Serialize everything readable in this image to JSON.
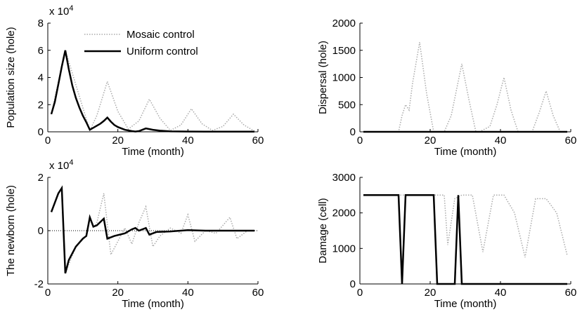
{
  "chart_data": [
    {
      "type": "line",
      "xlabel": "Time (month)",
      "ylabel": "Population size (hole)",
      "y_offset_label": "x 10",
      "y_offset_power": "4",
      "xlim": [
        0,
        60
      ],
      "xticks": [
        0,
        20,
        40,
        60
      ],
      "ylim": [
        0,
        8
      ],
      "yticks": [
        0,
        2,
        4,
        6,
        8
      ],
      "legend": "upper left",
      "series": [
        {
          "name": "Mosaic control",
          "color": "#aaaaaa",
          "style": "dotted",
          "x": [
            1,
            5,
            12,
            14,
            17,
            20,
            23,
            26,
            29,
            32,
            35,
            38,
            41,
            44,
            47,
            50,
            53,
            56,
            59
          ],
          "values": [
            1.3,
            6.0,
            0.1,
            1.2,
            3.7,
            1.5,
            0.2,
            0.8,
            2.4,
            1.0,
            0.1,
            0.5,
            1.7,
            0.6,
            0.1,
            0.4,
            1.3,
            0.5,
            0.05
          ]
        },
        {
          "name": "Uniform control",
          "color": "#000000",
          "style": "solid",
          "x": [
            1,
            2,
            3,
            4,
            5,
            6,
            7,
            8,
            9,
            10,
            11,
            12,
            13,
            14,
            15,
            16,
            17,
            18,
            19,
            20,
            22,
            24,
            25,
            26,
            27,
            28,
            29,
            30,
            32,
            35,
            40,
            45,
            50,
            55,
            59
          ],
          "values": [
            1.3,
            2.2,
            3.5,
            4.8,
            6.0,
            4.6,
            3.4,
            2.5,
            1.8,
            1.2,
            0.7,
            0.15,
            0.3,
            0.45,
            0.6,
            0.8,
            1.05,
            0.75,
            0.5,
            0.35,
            0.15,
            0.05,
            0.02,
            0.05,
            0.15,
            0.25,
            0.2,
            0.15,
            0.08,
            0.03,
            0.02,
            0.01,
            0.01,
            0.01,
            0.01
          ]
        }
      ]
    },
    {
      "type": "line",
      "xlabel": "Time (month)",
      "ylabel": "Dispersal (hole)",
      "xlim": [
        0,
        60
      ],
      "xticks": [
        0,
        20,
        40,
        60
      ],
      "ylim": [
        0,
        2000
      ],
      "yticks": [
        0,
        500,
        1000,
        1500,
        2000
      ],
      "series": [
        {
          "color": "#aaaaaa",
          "style": "dotted",
          "x": [
            1,
            11,
            12,
            13,
            14,
            15,
            17,
            19,
            21,
            22,
            24,
            26,
            29,
            31,
            33,
            34,
            37,
            39,
            41,
            43,
            45,
            47,
            49,
            51,
            53,
            55,
            57,
            59
          ],
          "values": [
            0,
            0,
            300,
            500,
            400,
            900,
            1650,
            700,
            0,
            0,
            0,
            300,
            1250,
            600,
            0,
            0,
            100,
            500,
            1000,
            400,
            0,
            0,
            0,
            350,
            750,
            300,
            0,
            0
          ]
        },
        {
          "color": "#000000",
          "style": "solid",
          "x": [
            1,
            59
          ],
          "values": [
            0,
            0
          ]
        }
      ]
    },
    {
      "type": "line",
      "xlabel": "Time (month)",
      "ylabel": "The newborn (hole)",
      "y_offset_label": "x 10",
      "y_offset_power": "4",
      "xlim": [
        0,
        60
      ],
      "xticks": [
        0,
        20,
        40,
        60
      ],
      "ylim": [
        -2,
        2
      ],
      "yticks": [
        -2,
        0,
        2
      ],
      "reference_line": 0,
      "series": [
        {
          "color": "#aaaaaa",
          "style": "dotted",
          "x": [
            1,
            3,
            4,
            5,
            8,
            11,
            12,
            13,
            14,
            16,
            18,
            20,
            22,
            24,
            26,
            28,
            30,
            32,
            35,
            38,
            40,
            42,
            45,
            48,
            52,
            54,
            57,
            59
          ],
          "values": [
            0.7,
            1.4,
            1.6,
            -1.6,
            -0.6,
            -0.2,
            0.5,
            0.1,
            0.3,
            1.4,
            -0.9,
            -0.4,
            0.1,
            -0.5,
            0.3,
            0.9,
            -0.6,
            -0.2,
            0.1,
            -0.1,
            0.6,
            -0.4,
            0.0,
            -0.1,
            0.5,
            -0.3,
            0.0,
            0.0
          ]
        },
        {
          "color": "#000000",
          "style": "solid",
          "x": [
            1,
            3,
            4,
            5,
            6,
            8,
            10,
            11,
            12,
            13,
            14,
            16,
            17,
            19,
            22,
            24,
            25,
            26,
            28,
            29,
            31,
            35,
            40,
            45,
            59
          ],
          "values": [
            0.7,
            1.4,
            1.6,
            -1.6,
            -1.1,
            -0.6,
            -0.3,
            -0.2,
            0.5,
            0.15,
            0.2,
            0.45,
            -0.3,
            -0.2,
            -0.1,
            0.05,
            0.1,
            0.0,
            0.1,
            -0.15,
            -0.05,
            -0.03,
            0.02,
            0.0,
            0.0
          ]
        }
      ]
    },
    {
      "type": "line",
      "xlabel": "Time (month)",
      "ylabel": "Damage (cell)",
      "xlim": [
        0,
        60
      ],
      "xticks": [
        0,
        20,
        40,
        60
      ],
      "ylim": [
        0,
        3000
      ],
      "yticks": [
        0,
        1000,
        2000,
        3000
      ],
      "series": [
        {
          "color": "#aaaaaa",
          "style": "dotted",
          "x": [
            1,
            24,
            25,
            27,
            29,
            32,
            35,
            38,
            41,
            44,
            47,
            50,
            53,
            56,
            59
          ],
          "values": [
            2500,
            2500,
            1100,
            2400,
            2500,
            2500,
            900,
            2500,
            2500,
            2000,
            750,
            2400,
            2400,
            2000,
            800
          ]
        },
        {
          "color": "#000000",
          "style": "solid",
          "x": [
            1,
            11,
            12,
            13,
            21,
            22,
            27,
            28,
            29,
            59
          ],
          "values": [
            2500,
            2500,
            0,
            2500,
            2500,
            0,
            0,
            2500,
            0,
            0
          ]
        }
      ]
    }
  ]
}
